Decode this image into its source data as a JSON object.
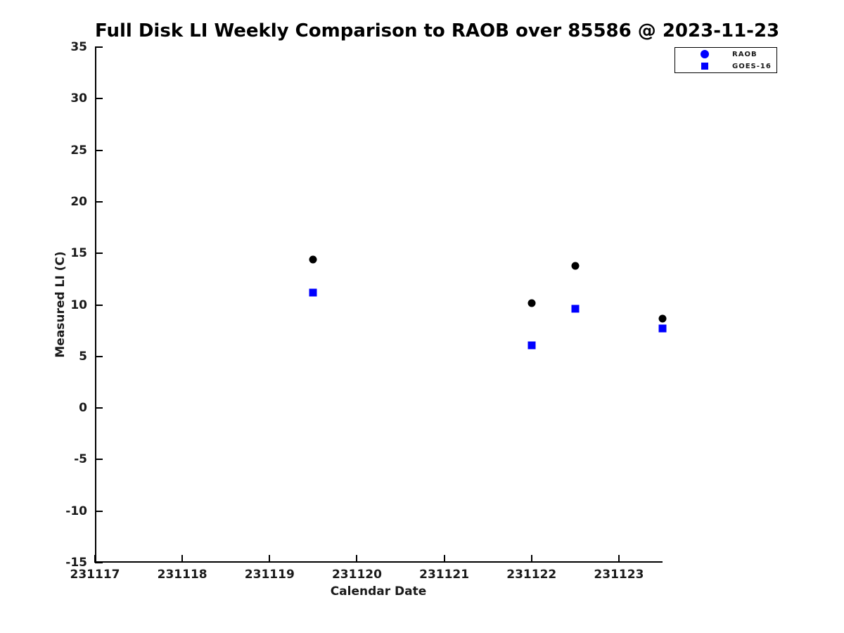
{
  "figure": {
    "title": "Full Disk LI Weekly Comparison to RAOB over 85586 @ 2023-11-23",
    "xlabel": "Calendar Date",
    "ylabel": "Measured LI (C)"
  },
  "legend": {
    "items": [
      {
        "label": "RAOB",
        "marker": "circle",
        "color": "#0000ff"
      },
      {
        "label": "GOES-16",
        "marker": "square",
        "color": "#0000ff"
      }
    ]
  },
  "chart_data": {
    "type": "scatter",
    "title": "Full Disk LI Weekly Comparison to RAOB over 85586 @ 2023-11-23",
    "xlabel": "Calendar Date",
    "ylabel": "Measured LI (C)",
    "xlim": [
      231117,
      231123.5
    ],
    "ylim": [
      -15,
      35
    ],
    "x_ticks": [
      231117,
      231118,
      231119,
      231120,
      231121,
      231122,
      231123
    ],
    "y_ticks": [
      35,
      30,
      25,
      20,
      15,
      10,
      5,
      0,
      -5,
      -10,
      -15
    ],
    "grid": false,
    "legend_position": "upper right, outside axes",
    "series": [
      {
        "name": "RAOB",
        "marker": "circle",
        "color": "#000000",
        "legend_marker_color": "#0000ff",
        "x": [
          231119.5,
          231122.0,
          231122.5,
          231123.5
        ],
        "y": [
          14.4,
          10.2,
          13.8,
          8.7
        ]
      },
      {
        "name": "GOES-16",
        "marker": "square",
        "color": "#0000ff",
        "legend_marker_color": "#0000ff",
        "x": [
          231119.5,
          231122.0,
          231122.5,
          231123.5
        ],
        "y": [
          11.2,
          6.1,
          9.6,
          7.7
        ]
      }
    ]
  }
}
